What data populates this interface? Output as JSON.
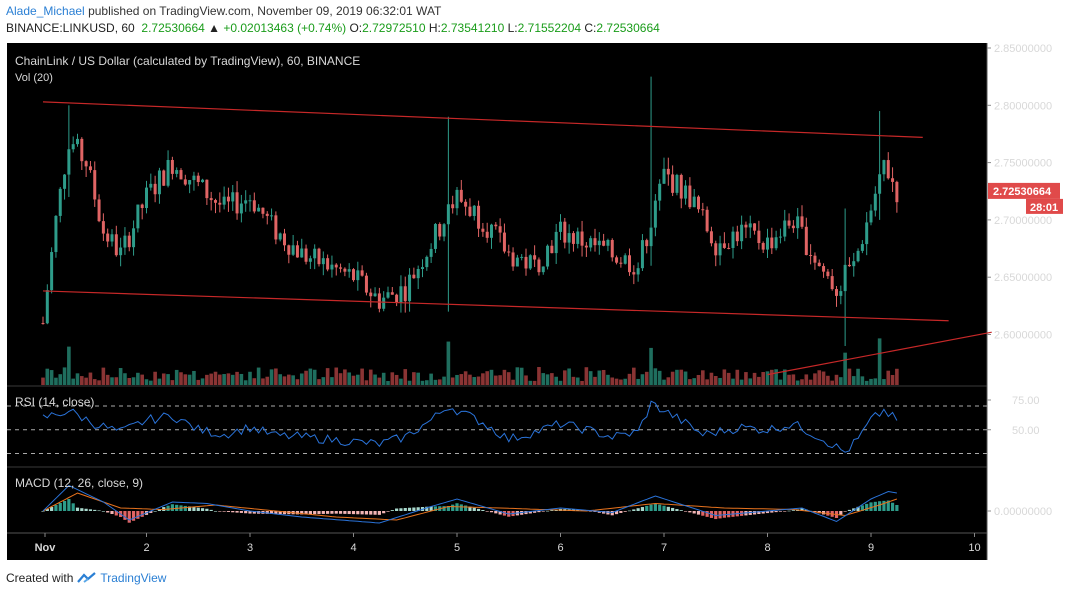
{
  "header": {
    "user": "Alade_Michael",
    "published_text": "published on TradingView.com, November 09, 2019 06:32:01 WAT",
    "symbol": "BINANCE:LINKUSD, 60",
    "last": "2.72530664",
    "change": "+0.02013463 (+0.74%)",
    "o_label": "O:",
    "o_value": "2.72972510",
    "h_label": "H:",
    "h_value": "2.73541210",
    "l_label": "L:",
    "l_value": "2.71552204",
    "c_label": "C:",
    "c_value": "2.72530664"
  },
  "footer": {
    "created_with": "Created with",
    "brand": "TradingView"
  },
  "colors": {
    "background": "#000000",
    "up": "#2e9c8a",
    "down": "#e06464",
    "vol_up": "#1f6e5e",
    "vol_down": "#8a3434",
    "channel": "#c62828",
    "rsi_line": "#2a73d9",
    "macd_line": "#2a73d9",
    "signal_line": "#e8731e",
    "price_tag": "#e04a4a"
  },
  "chart_data": [
    {
      "type": "candlestick",
      "title": "ChainLink / US Dollar (calculated by TradingView), 60, BINANCE",
      "volume_label": "Vol (20)",
      "x_ticks": [
        "Nov",
        "2",
        "3",
        "4",
        "5",
        "6",
        "7",
        "8",
        "9",
        "10"
      ],
      "y_ticks": [
        "2.85000000",
        "2.80000000",
        "2.75000000",
        "2.70000000",
        "2.65000000",
        "2.60000000"
      ],
      "ylim": [
        2.565,
        2.855
      ],
      "last_price": "2.72530664",
      "countdown": "28:01",
      "close_path": [
        [
          "Nov 1 00:00",
          2.61
        ],
        [
          "Nov 1 03:00",
          2.7
        ],
        [
          "Nov 1 06:00",
          2.77
        ],
        [
          "Nov 1 10:00",
          2.75
        ],
        [
          "Nov 1 14:00",
          2.69
        ],
        [
          "Nov 1 18:00",
          2.67
        ],
        [
          "Nov 2 00:00",
          2.72
        ],
        [
          "Nov 2 06:00",
          2.75
        ],
        [
          "Nov 2 12:00",
          2.73
        ],
        [
          "Nov 2 18:00",
          2.71
        ],
        [
          "Nov 3 00:00",
          2.72
        ],
        [
          "Nov 3 06:00",
          2.69
        ],
        [
          "Nov 3 12:00",
          2.67
        ],
        [
          "Nov 3 18:00",
          2.66
        ],
        [
          "Nov 4 00:00",
          2.65
        ],
        [
          "Nov 4 06:00",
          2.63
        ],
        [
          "Nov 4 12:00",
          2.64
        ],
        [
          "Nov 4 18:00",
          2.68
        ],
        [
          "Nov 5 00:00",
          2.72
        ],
        [
          "Nov 5 06:00",
          2.7
        ],
        [
          "Nov 5 12:00",
          2.67
        ],
        [
          "Nov 5 18:00",
          2.66
        ],
        [
          "Nov 6 00:00",
          2.69
        ],
        [
          "Nov 6 06:00",
          2.68
        ],
        [
          "Nov 6 12:00",
          2.67
        ],
        [
          "Nov 6 18:00",
          2.66
        ],
        [
          "Nov 7 00:00",
          2.74
        ],
        [
          "Nov 7 06:00",
          2.72
        ],
        [
          "Nov 7 12:00",
          2.68
        ],
        [
          "Nov 7 18:00",
          2.69
        ],
        [
          "Nov 8 00:00",
          2.68
        ],
        [
          "Nov 8 06:00",
          2.7
        ],
        [
          "Nov 8 12:00",
          2.66
        ],
        [
          "Nov 8 16:00",
          2.64
        ],
        [
          "Nov 8 20:00",
          2.66
        ],
        [
          "Nov 9 00:00",
          2.71
        ],
        [
          "Nov 9 03:00",
          2.75
        ],
        [
          "Nov 9 06:00",
          2.725
        ]
      ],
      "wicks": [
        {
          "time": "Nov 1 06:00",
          "high": 2.8,
          "low": 2.72
        },
        {
          "time": "Nov 4 22:00",
          "high": 2.79,
          "low": 2.62
        },
        {
          "time": "Nov 6 21:00",
          "high": 2.825,
          "low": 2.66
        },
        {
          "time": "Nov 8 18:00",
          "high": 2.71,
          "low": 2.59
        },
        {
          "time": "Nov 9 02:00",
          "high": 2.795,
          "low": 2.7
        }
      ],
      "channel_upper": [
        [
          "Nov 1 00:00",
          2.803
        ],
        [
          "Nov 9 12:00",
          2.772
        ]
      ],
      "channel_lower": [
        [
          "Nov 1 00:00",
          2.638
        ],
        [
          "Nov 9 18:00",
          2.612
        ]
      ],
      "support_line": [
        [
          "Nov 8 00:00",
          2.565
        ],
        [
          "Nov 10 04:00",
          2.602
        ]
      ]
    },
    {
      "type": "line",
      "title": "RSI (14, close)",
      "y_ticks": [
        "75.00",
        "50.00"
      ],
      "levels": [
        70,
        50,
        30
      ],
      "ylim": [
        25,
        75
      ],
      "path": [
        [
          "Nov 1 00:00",
          60
        ],
        [
          "Nov 1 06:00",
          66
        ],
        [
          "Nov 1 12:00",
          55
        ],
        [
          "Nov 1 18:00",
          48
        ],
        [
          "Nov 2 00:00",
          58
        ],
        [
          "Nov 2 06:00",
          62
        ],
        [
          "Nov 2 12:00",
          50
        ],
        [
          "Nov 2 18:00",
          46
        ],
        [
          "Nov 3 00:00",
          52
        ],
        [
          "Nov 3 06:00",
          45
        ],
        [
          "Nov 3 12:00",
          44
        ],
        [
          "Nov 3 18:00",
          42
        ],
        [
          "Nov 4 00:00",
          40
        ],
        [
          "Nov 4 06:00",
          38
        ],
        [
          "Nov 4 12:00",
          44
        ],
        [
          "Nov 4 18:00",
          58
        ],
        [
          "Nov 4 22:00",
          70
        ],
        [
          "Nov 5 06:00",
          56
        ],
        [
          "Nov 5 12:00",
          42
        ],
        [
          "Nov 5 18:00",
          48
        ],
        [
          "Nov 6 00:00",
          55
        ],
        [
          "Nov 6 06:00",
          50
        ],
        [
          "Nov 6 12:00",
          44
        ],
        [
          "Nov 6 18:00",
          48
        ],
        [
          "Nov 6 21:00",
          72
        ],
        [
          "Nov 7 03:00",
          60
        ],
        [
          "Nov 7 09:00",
          46
        ],
        [
          "Nov 7 18:00",
          52
        ],
        [
          "Nov 8 00:00",
          50
        ],
        [
          "Nov 8 06:00",
          55
        ],
        [
          "Nov 8 12:00",
          44
        ],
        [
          "Nov 8 18:00",
          31
        ],
        [
          "Nov 8 21:00",
          42
        ],
        [
          "Nov 9 00:00",
          58
        ],
        [
          "Nov 9 03:00",
          66
        ],
        [
          "Nov 9 06:00",
          58
        ]
      ]
    },
    {
      "type": "line",
      "title": "MACD (12, 26, close, 9)",
      "y_ticks": [
        "0.00000000"
      ],
      "ylim": [
        -0.02,
        0.022
      ],
      "series": [
        {
          "name": "MACD",
          "values": [
            [
              "Nov 1 00:00",
              0.0
            ],
            [
              "Nov 1 06:00",
              0.017
            ],
            [
              "Nov 1 14:00",
              0.006
            ],
            [
              "Nov 1 20:00",
              -0.006
            ],
            [
              "Nov 2 06:00",
              0.006
            ],
            [
              "Nov 2 14:00",
              0.005
            ],
            [
              "Nov 3 00:00",
              0.0
            ],
            [
              "Nov 3 12:00",
              -0.004
            ],
            [
              "Nov 4 06:00",
              -0.008
            ],
            [
              "Nov 4 18:00",
              0.003
            ],
            [
              "Nov 5 00:00",
              0.008
            ],
            [
              "Nov 5 12:00",
              -0.002
            ],
            [
              "Nov 6 00:00",
              0.002
            ],
            [
              "Nov 6 12:00",
              -0.001
            ],
            [
              "Nov 6 22:00",
              0.01
            ],
            [
              "Nov 7 12:00",
              -0.003
            ],
            [
              "Nov 8 00:00",
              0.0
            ],
            [
              "Nov 8 08:00",
              0.002
            ],
            [
              "Nov 8 16:00",
              -0.007
            ],
            [
              "Nov 9 00:00",
              0.008
            ],
            [
              "Nov 9 04:00",
              0.013
            ],
            [
              "Nov 9 06:00",
              0.012
            ]
          ]
        },
        {
          "name": "Signal",
          "values": [
            [
              "Nov 1 00:00",
              0.0
            ],
            [
              "Nov 1 08:00",
              0.012
            ],
            [
              "Nov 1 18:00",
              0.002
            ],
            [
              "Nov 2 04:00",
              0.001
            ],
            [
              "Nov 2 16:00",
              0.004
            ],
            [
              "Nov 3 06:00",
              0.0
            ],
            [
              "Nov 3 20:00",
              -0.004
            ],
            [
              "Nov 4 10:00",
              -0.006
            ],
            [
              "Nov 4 22:00",
              0.003
            ],
            [
              "Nov 5 10:00",
              0.002
            ],
            [
              "Nov 6 06:00",
              0.0
            ],
            [
              "Nov 6 22:00",
              0.005
            ],
            [
              "Nov 7 14:00",
              0.002
            ],
            [
              "Nov 8 06:00",
              0.001
            ],
            [
              "Nov 8 18:00",
              -0.003
            ],
            [
              "Nov 9 02:00",
              0.004
            ],
            [
              "Nov 9 06:00",
              0.008
            ]
          ]
        }
      ]
    }
  ]
}
